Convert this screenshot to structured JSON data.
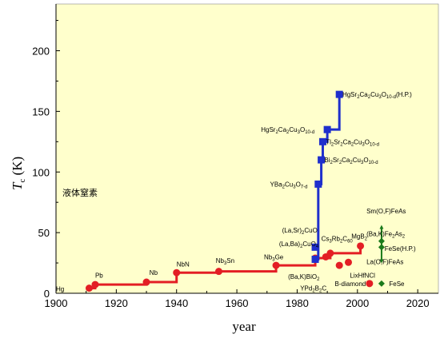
{
  "chart_data": {
    "type": "line",
    "xlabel": "year",
    "ylabel_main": "T",
    "ylabel_sub": "c",
    "ylabel_unit": "(K)",
    "xlim": [
      1900,
      2030
    ],
    "ylim": [
      0,
      240
    ],
    "x_ticks": [
      1900,
      1920,
      1940,
      1960,
      1980,
      2000,
      2020
    ],
    "x_tick_labels": [
      "1900",
      "1920",
      "1940",
      "1960",
      "1980",
      "2000",
      "2020"
    ],
    "y_ticks": [
      0,
      50,
      100,
      150,
      200
    ],
    "y_tick_labels": [
      "0",
      "50",
      "100",
      "150",
      "200"
    ],
    "plot_background": "#ffffcc",
    "grid": false,
    "reference_label": {
      "text": "液体窒素",
      "value": 77
    },
    "series": [
      {
        "color": "#e31e24",
        "marker": "circle",
        "line": "step",
        "points": [
          {
            "x": 1911,
            "y": 4.2,
            "label": "Hg"
          },
          {
            "x": 1913,
            "y": 7.2,
            "label": "Pb"
          },
          {
            "x": 1930,
            "y": 9.2,
            "label": "Nb"
          },
          {
            "x": 1940,
            "y": 17,
            "label": "NbN"
          },
          {
            "x": 1954,
            "y": 18,
            "label": "Nb3Sn"
          },
          {
            "x": 1973,
            "y": 23,
            "label": "Nb3Ge"
          },
          {
            "x": 1986,
            "y": 29,
            "label": "(Ba,K)BiO2"
          },
          {
            "x": 1991,
            "y": 33,
            "label": "Cs3Rb2C60"
          },
          {
            "x": 2001,
            "y": 39,
            "label": "MgB2"
          }
        ]
      },
      {
        "color": "#1f2fcc",
        "marker": "square",
        "line": "step",
        "points": [
          {
            "x": 1986,
            "y": 28,
            "label": "(La,Ba)2CuO4"
          },
          {
            "x": 1986,
            "y": 38,
            "label": "(La,Sr)2CuO"
          },
          {
            "x": 1987,
            "y": 90,
            "label": "YBa2Cu3O7-d"
          },
          {
            "x": 1988,
            "y": 110,
            "label": "Bi2Sr2Ca2Cu3O10-d"
          },
          {
            "x": 1988,
            "y": 125,
            "label": "Tl2Sr2Ca2Cu3O10-d"
          },
          {
            "x": 1993,
            "y": 135,
            "label": "HgSr2Ca2Cu3O10-d"
          },
          {
            "x": 1994,
            "y": 164,
            "label": "HgSr2Ca2Cu3O10-d(H.P.)"
          }
        ]
      },
      {
        "color": "#e31e24",
        "marker": "circle",
        "line": "none",
        "points": [
          {
            "x": 1989,
            "y": 30,
            "label": "(Ba,K)BiO3"
          },
          {
            "x": 1994,
            "y": 23,
            "label": "YPd2B2C"
          },
          {
            "x": 1997,
            "y": 25.5,
            "label": "LixHfNCl"
          },
          {
            "x": 2004,
            "y": 8,
            "label": "B-diamond"
          }
        ]
      },
      {
        "color": "#1a7a1a",
        "marker": "diamond",
        "line": "vertical",
        "points": [
          {
            "x": 2008,
            "y": 26,
            "label": "La(O,F)FeAs"
          },
          {
            "x": 2008,
            "y": 38,
            "label": "(Ba,K)Fe2As2"
          },
          {
            "x": 2008,
            "y": 55,
            "label": "Sm(O,F)FeAs"
          },
          {
            "x": 2008,
            "y": 43,
            "label": "FeSe(H.P.)"
          },
          {
            "x": 2008,
            "y": 8,
            "label": "FeSe"
          }
        ]
      }
    ],
    "annotations": [
      {
        "text": "Hg",
        "x": 1900,
        "y": 1.8
      },
      {
        "text": "Pb",
        "x": 1913,
        "y": 13
      },
      {
        "text": "Nb",
        "x": 1931,
        "y": 15
      },
      {
        "text": "NbN",
        "x": 1940,
        "y": 22
      },
      {
        "text": "Nb3Sn",
        "x": 1953,
        "y": 25
      },
      {
        "text": "Nb3Ge",
        "x": 1969,
        "y": 28
      },
      {
        "text": "(La,Sr)2CuO",
        "x": 1975,
        "y": 50
      },
      {
        "text": "(La,Ba)2CuO4",
        "x": 1974,
        "y": 39
      },
      {
        "text": "(Ba,K)BiO2",
        "x": 1977,
        "y": 12
      },
      {
        "text": "YPd2B2C",
        "x": 1981,
        "y": 2.2
      },
      {
        "text": "B-diamond",
        "x": 1992.5,
        "y": 6
      },
      {
        "text": "LixHfNCl",
        "x": 1997.5,
        "y": 13
      },
      {
        "text": "Cs3Rb2C60",
        "x": 1988,
        "y": 43
      },
      {
        "text": "MgB2",
        "x": 1998,
        "y": 45
      },
      {
        "text": "YBa2Cu3O7-d",
        "x": 1971,
        "y": 88
      },
      {
        "text": "Bi2Sr2Ca2Cu3O10-d",
        "x": 1989,
        "y": 108
      },
      {
        "text": "Tl2Sr2Ca2Cu3O10-d",
        "x": 1989.5,
        "y": 123
      },
      {
        "text": "HgSr2Ca2Cu3O10-d",
        "x": 1968,
        "y": 133
      },
      {
        "text": "HgSr2Ca2Cu3O10-d(H.P.)",
        "x": 1995,
        "y": 162
      },
      {
        "text": "Sm(O,F)FeAs",
        "x": 2003,
        "y": 66
      },
      {
        "text": "(Ba,K)Fe2As2",
        "x": 2003,
        "y": 47
      },
      {
        "text": "FeSe(H.P.)",
        "x": 2009,
        "y": 35
      },
      {
        "text": "La(O,F)FeAs",
        "x": 2003,
        "y": 24
      },
      {
        "text": "FeSe",
        "x": 2010.5,
        "y": 6
      }
    ]
  }
}
